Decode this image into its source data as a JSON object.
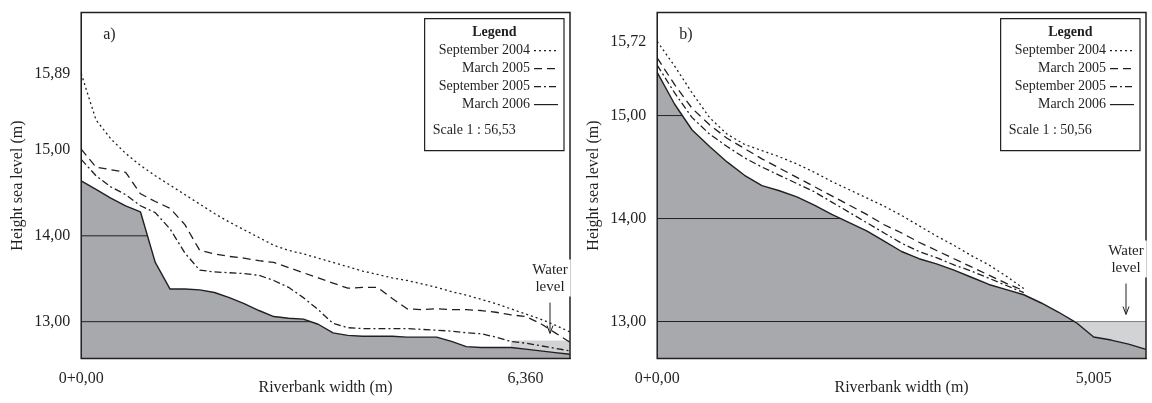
{
  "chart_data": [
    {
      "type": "line",
      "title": "a)",
      "xlabel": "Riverbank width (m)",
      "ylabel": "Height sea level (m)",
      "legend_title": "Legend",
      "annotations": [
        "Scale 1 : 56,53"
      ],
      "legend": "top right",
      "grid": "y",
      "ylim": [
        12.57,
        16.6
      ],
      "yticks": [
        {
          "value": 13,
          "label": "13,00"
        },
        {
          "value": 14,
          "label": "14,00"
        },
        {
          "value": 15,
          "label": "15,00"
        },
        {
          "value": 15.89,
          "label": "15,89"
        }
      ],
      "categories": [
        "0+0,00",
        null,
        null,
        null,
        null,
        null,
        null,
        null,
        null,
        null,
        null,
        null,
        null,
        null,
        null,
        null,
        null,
        null,
        null,
        null,
        null,
        null,
        null,
        null,
        null,
        null,
        null,
        null,
        null,
        null,
        "6,360",
        null,
        null,
        null
      ],
      "series": [
        {
          "name": "September 2004",
          "type": "line",
          "color": "#231f20",
          "line_style": "dotted",
          "values": [
            15.89,
            15.35,
            15.13,
            14.96,
            14.82,
            14.7,
            14.59,
            14.48,
            14.37,
            14.26,
            14.16,
            14.07,
            13.98,
            13.89,
            13.83,
            13.79,
            13.74,
            13.69,
            13.64,
            13.59,
            13.55,
            13.51,
            13.48,
            13.44,
            13.4,
            13.35,
            13.31,
            13.26,
            13.21,
            13.15,
            13.09,
            13.03,
            12.96,
            12.88
          ]
        },
        {
          "name": "March 2005",
          "type": "line",
          "color": "#231f20",
          "line_style": "dashed",
          "values": [
            15.01,
            14.8,
            14.77,
            14.74,
            14.49,
            14.4,
            14.32,
            14.13,
            13.83,
            13.79,
            13.76,
            13.74,
            13.71,
            13.69,
            13.63,
            13.57,
            13.51,
            13.45,
            13.39,
            13.4,
            13.4,
            13.27,
            13.15,
            13.14,
            13.15,
            13.14,
            13.14,
            13.13,
            13.11,
            13.08,
            13.06,
            12.98,
            12.87,
            12.76
          ]
        },
        {
          "name": "September 2005",
          "type": "line",
          "color": "#231f20",
          "line_style": "dashdot",
          "values": [
            14.89,
            14.7,
            14.57,
            14.48,
            14.35,
            14.27,
            14.08,
            13.8,
            13.6,
            13.58,
            13.57,
            13.56,
            13.54,
            13.48,
            13.4,
            13.28,
            13.14,
            12.98,
            12.93,
            12.92,
            12.92,
            12.92,
            12.92,
            12.91,
            12.9,
            12.89,
            12.87,
            12.86,
            12.82,
            12.77,
            12.75,
            12.72,
            12.69,
            12.66
          ]
        },
        {
          "name": "March 2006",
          "type": "area",
          "color": "#a7a9ac",
          "line_style": "solid",
          "values": [
            14.64,
            14.54,
            14.44,
            14.35,
            14.28,
            13.69,
            13.38,
            13.38,
            13.37,
            13.34,
            13.28,
            13.21,
            13.13,
            13.06,
            13.04,
            13.03,
            12.97,
            12.87,
            12.84,
            12.83,
            12.83,
            12.83,
            12.82,
            12.82,
            12.82,
            12.77,
            12.71,
            12.7,
            12.7,
            12.7,
            12.68,
            12.66,
            12.64,
            12.62
          ]
        },
        {
          "name": "Water level",
          "type": "area",
          "color": "#d1d3d4",
          "values": [
            null,
            null,
            null,
            null,
            null,
            null,
            null,
            null,
            null,
            null,
            null,
            null,
            null,
            null,
            null,
            null,
            null,
            null,
            null,
            null,
            null,
            null,
            null,
            null,
            null,
            null,
            null,
            null,
            null,
            12.78,
            12.78,
            12.78,
            12.78,
            12.78
          ]
        }
      ]
    },
    {
      "type": "line",
      "title": "b)",
      "xlabel": "Riverbank width (m)",
      "ylabel": "Height sea level (m)",
      "legend_title": "Legend",
      "annotations": [
        "Scale 1 : 50,56"
      ],
      "legend": "top right",
      "grid": "y",
      "ylim": [
        12.64,
        16.0
      ],
      "yticks": [
        {
          "value": 13,
          "label": "13,00"
        },
        {
          "value": 14,
          "label": "14,00"
        },
        {
          "value": 15,
          "label": "15,00"
        },
        {
          "value": 15.72,
          "label": "15,72"
        }
      ],
      "categories": [
        "0+0,00",
        null,
        null,
        null,
        null,
        null,
        null,
        null,
        null,
        null,
        null,
        null,
        null,
        null,
        null,
        null,
        null,
        null,
        null,
        null,
        null,
        null,
        null,
        null,
        null,
        "5,005",
        null,
        null,
        null
      ],
      "series": [
        {
          "name": "September 2004",
          "type": "line",
          "color": "#231f20",
          "line_style": "dotted",
          "values": [
            15.72,
            15.48,
            15.22,
            14.98,
            14.82,
            14.72,
            14.66,
            14.6,
            14.53,
            14.45,
            14.36,
            14.28,
            14.2,
            14.12,
            14.03,
            13.93,
            13.83,
            13.74,
            13.64,
            13.55,
            13.44,
            13.32,
            null,
            null,
            null,
            null,
            null,
            null,
            null
          ]
        },
        {
          "name": "March 2005",
          "type": "line",
          "color": "#231f20",
          "line_style": "dashed",
          "values": [
            15.56,
            15.3,
            15.07,
            14.91,
            14.78,
            14.68,
            14.58,
            14.49,
            14.4,
            14.31,
            14.22,
            14.13,
            14.04,
            13.94,
            13.86,
            13.77,
            13.69,
            13.61,
            13.53,
            13.45,
            13.37,
            13.3,
            null,
            null,
            null,
            null,
            null,
            null,
            null
          ]
        },
        {
          "name": "September 2005",
          "type": "line",
          "color": "#231f20",
          "line_style": "dashdot",
          "values": [
            15.49,
            15.22,
            14.98,
            14.82,
            14.7,
            14.59,
            14.5,
            14.42,
            14.34,
            14.26,
            14.16,
            14.06,
            13.96,
            13.86,
            13.76,
            13.68,
            13.62,
            13.55,
            13.49,
            13.42,
            13.35,
            13.28,
            null,
            null,
            null,
            null,
            null,
            null,
            null
          ]
        },
        {
          "name": "March 2006",
          "type": "area",
          "color": "#a7a9ac",
          "line_style": "solid",
          "values": [
            15.42,
            15.11,
            14.86,
            14.7,
            14.55,
            14.42,
            14.32,
            14.27,
            14.21,
            14.13,
            14.04,
            13.96,
            13.88,
            13.78,
            13.68,
            13.61,
            13.56,
            13.5,
            13.43,
            13.36,
            13.31,
            13.26,
            13.18,
            13.09,
            12.99,
            12.85,
            12.82,
            12.78,
            12.73
          ]
        },
        {
          "name": "Water level",
          "type": "area",
          "color": "#d1d3d4",
          "values": [
            null,
            null,
            null,
            null,
            null,
            null,
            null,
            null,
            null,
            null,
            null,
            null,
            null,
            null,
            null,
            null,
            null,
            null,
            null,
            null,
            null,
            null,
            null,
            null,
            13.0,
            13.0,
            13.0,
            13.0,
            13.0
          ]
        }
      ]
    }
  ]
}
